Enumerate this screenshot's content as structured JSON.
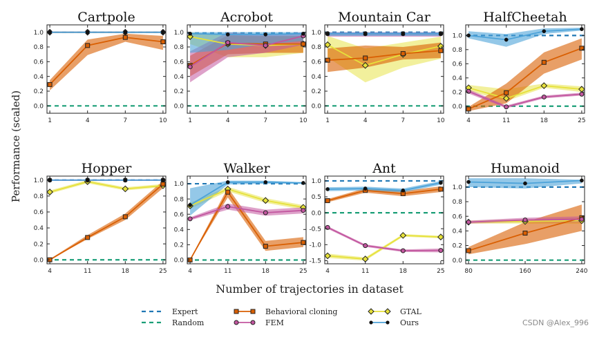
{
  "figure": {
    "ylabel": "Performance (scaled)",
    "xlabel": "Number of trajectories in dataset",
    "watermark": "CSDN @Alex_996"
  },
  "colors": {
    "expert": "#1f77b4",
    "random": "#1a9e77",
    "bc": "#d95f02",
    "fem": "#c2569f",
    "gtal": "#e6e13a",
    "ours": "#4da3d9",
    "marker_edge": "#222222"
  },
  "legend": {
    "entries": [
      {
        "key": "expert",
        "label": "Expert"
      },
      {
        "key": "random",
        "label": "Random"
      },
      {
        "key": "bc",
        "label": "Behavioral cloning"
      },
      {
        "key": "fem",
        "label": "FEM"
      },
      {
        "key": "gtal",
        "label": "GTAL"
      },
      {
        "key": "ours",
        "label": "Ours"
      }
    ]
  },
  "chart_data": [
    {
      "type": "line",
      "title": "Cartpole",
      "x": [
        1,
        4,
        7,
        10
      ],
      "xticks": [
        1,
        4,
        7,
        10
      ],
      "ylim": [
        -0.1,
        1.1
      ],
      "yticks": [
        0.0,
        0.2,
        0.4,
        0.6,
        0.8,
        1.0
      ],
      "expert": 1.0,
      "random": 0.0,
      "series": [
        {
          "key": "bc",
          "values": [
            0.29,
            0.82,
            0.93,
            0.87
          ],
          "lower": [
            0.21,
            0.69,
            0.87,
            0.76
          ],
          "upper": [
            0.35,
            0.9,
            0.98,
            0.95
          ]
        },
        {
          "key": "fem",
          "values": [
            1.0,
            1.0,
            1.0,
            1.0
          ],
          "lower": [
            0.99,
            0.99,
            0.99,
            0.99
          ],
          "upper": [
            1.0,
            1.0,
            1.0,
            1.0
          ]
        },
        {
          "key": "gtal",
          "values": [
            1.0,
            1.0,
            1.0,
            1.0
          ],
          "lower": [
            0.99,
            0.99,
            0.99,
            0.99
          ],
          "upper": [
            1.0,
            1.0,
            1.0,
            1.0
          ]
        },
        {
          "key": "ours",
          "values": [
            1.0,
            1.0,
            1.0,
            1.0
          ],
          "lower": [
            0.99,
            0.99,
            0.99,
            0.99
          ],
          "upper": [
            1.0,
            1.0,
            1.0,
            1.0
          ]
        }
      ]
    },
    {
      "type": "line",
      "title": "Acrobot",
      "x": [
        1,
        4,
        7,
        10
      ],
      "xticks": [
        1,
        4,
        7,
        10
      ],
      "ylim": [
        -0.1,
        1.1
      ],
      "yticks": [
        0.0,
        0.2,
        0.4,
        0.6,
        0.8,
        1.0
      ],
      "expert": 0.99,
      "random": 0.0,
      "series": [
        {
          "key": "bc",
          "values": [
            0.55,
            0.85,
            0.84,
            0.84
          ],
          "lower": [
            0.4,
            0.7,
            0.72,
            0.72
          ],
          "upper": [
            0.68,
            0.96,
            0.95,
            0.95
          ]
        },
        {
          "key": "fem",
          "values": [
            0.53,
            0.86,
            0.82,
            0.95
          ],
          "lower": [
            0.32,
            0.66,
            0.72,
            0.83
          ],
          "upper": [
            0.74,
            1.0,
            0.96,
            1.0
          ]
        },
        {
          "key": "gtal",
          "values": [
            0.94,
            0.84,
            0.82,
            0.84
          ],
          "lower": [
            0.84,
            0.66,
            0.66,
            0.72
          ],
          "upper": [
            1.0,
            0.95,
            0.94,
            0.94
          ]
        },
        {
          "key": "ours",
          "values": [
            0.98,
            0.97,
            0.97,
            0.98
          ],
          "lower": [
            0.72,
            0.76,
            0.84,
            0.88
          ],
          "upper": [
            1.0,
            1.0,
            1.0,
            1.0
          ]
        }
      ]
    },
    {
      "type": "line",
      "title": "Mountain Car",
      "x": [
        1,
        4,
        7,
        10
      ],
      "xticks": [
        1,
        4,
        7,
        10
      ],
      "ylim": [
        -0.1,
        1.1
      ],
      "yticks": [
        0.0,
        0.2,
        0.4,
        0.6,
        0.8,
        1.0
      ],
      "expert": 1.0,
      "random": 0.0,
      "series": [
        {
          "key": "bc",
          "values": [
            0.62,
            0.65,
            0.71,
            0.75
          ],
          "lower": [
            0.46,
            0.52,
            0.63,
            0.65
          ],
          "upper": [
            0.78,
            0.82,
            0.8,
            0.86
          ]
        },
        {
          "key": "fem",
          "values": [
            0.98,
            0.98,
            0.98,
            0.98
          ],
          "lower": [
            0.94,
            0.94,
            0.94,
            0.94
          ],
          "upper": [
            1.0,
            1.0,
            1.0,
            1.0
          ]
        },
        {
          "key": "gtal",
          "values": [
            0.83,
            0.55,
            0.7,
            0.81
          ],
          "lower": [
            0.66,
            0.32,
            0.52,
            0.64
          ],
          "upper": [
            0.95,
            0.78,
            0.86,
            0.94
          ]
        },
        {
          "key": "ours",
          "values": [
            0.98,
            0.98,
            0.98,
            0.98
          ],
          "lower": [
            0.95,
            0.95,
            0.95,
            0.95
          ],
          "upper": [
            1.0,
            1.0,
            1.0,
            1.0
          ]
        }
      ]
    },
    {
      "type": "line",
      "title": "HalfCheetah",
      "x": [
        4,
        11,
        18,
        25
      ],
      "xticks": [
        4,
        11,
        18,
        25
      ],
      "ylim": [
        -0.1,
        1.15
      ],
      "yticks": [
        0.0,
        0.2,
        0.4,
        0.6,
        0.8,
        1.0
      ],
      "expert": 1.0,
      "random": 0.0,
      "series": [
        {
          "key": "bc",
          "values": [
            -0.04,
            0.19,
            0.62,
            0.82
          ],
          "lower": [
            -0.07,
            0.04,
            0.46,
            0.66
          ],
          "upper": [
            -0.01,
            0.32,
            0.76,
            0.96
          ]
        },
        {
          "key": "fem",
          "values": [
            0.21,
            -0.01,
            0.13,
            0.17
          ],
          "lower": [
            0.18,
            -0.03,
            0.11,
            0.15
          ],
          "upper": [
            0.24,
            0.01,
            0.15,
            0.19
          ]
        },
        {
          "key": "gtal",
          "values": [
            0.26,
            0.11,
            0.29,
            0.24
          ],
          "lower": [
            0.22,
            0.07,
            0.26,
            0.2
          ],
          "upper": [
            0.3,
            0.24,
            0.32,
            0.28
          ]
        },
        {
          "key": "ours",
          "values": [
            1.0,
            0.94,
            1.06,
            1.09
          ],
          "lower": [
            0.96,
            0.84,
            1.02,
            1.07
          ],
          "upper": [
            1.06,
            1.02,
            1.1,
            1.11
          ]
        }
      ]
    },
    {
      "type": "line",
      "title": "Hopper",
      "x": [
        4,
        11,
        18,
        25
      ],
      "xticks": [
        4,
        11,
        18,
        25
      ],
      "ylim": [
        -0.05,
        1.05
      ],
      "yticks": [
        0.0,
        0.2,
        0.4,
        0.6,
        0.8,
        1.0
      ],
      "expert": 1.0,
      "random": 0.0,
      "series": [
        {
          "key": "bc",
          "values": [
            0.0,
            0.28,
            0.54,
            0.95
          ],
          "lower": [
            0.0,
            0.26,
            0.5,
            0.9
          ],
          "upper": [
            0.01,
            0.31,
            0.58,
            0.99
          ]
        },
        {
          "key": "fem",
          "values": [
            1.0,
            1.0,
            1.0,
            1.0
          ],
          "lower": [
            0.99,
            0.99,
            0.99,
            0.99
          ],
          "upper": [
            1.0,
            1.0,
            1.0,
            1.0
          ]
        },
        {
          "key": "gtal",
          "values": [
            0.85,
            0.98,
            0.89,
            0.93
          ],
          "lower": [
            0.83,
            0.96,
            0.87,
            0.91
          ],
          "upper": [
            0.87,
            1.0,
            0.91,
            0.95
          ]
        },
        {
          "key": "ours",
          "values": [
            1.0,
            1.0,
            1.0,
            1.0
          ],
          "lower": [
            0.99,
            0.99,
            0.99,
            0.99
          ],
          "upper": [
            1.0,
            1.0,
            1.0,
            1.0
          ]
        }
      ]
    },
    {
      "type": "line",
      "title": "Walker",
      "x": [
        4,
        11,
        18,
        25
      ],
      "xticks": [
        4,
        11,
        18,
        25
      ],
      "ylim": [
        -0.05,
        1.1
      ],
      "yticks": [
        0.0,
        0.2,
        0.4,
        0.6,
        0.8,
        1.0
      ],
      "expert": 1.0,
      "random": 0.0,
      "series": [
        {
          "key": "bc",
          "values": [
            0.0,
            0.89,
            0.18,
            0.23
          ],
          "lower": [
            0.0,
            0.82,
            0.12,
            0.17
          ],
          "upper": [
            0.01,
            0.95,
            0.25,
            0.3
          ]
        },
        {
          "key": "fem",
          "values": [
            0.54,
            0.7,
            0.62,
            0.65
          ],
          "lower": [
            0.52,
            0.66,
            0.58,
            0.61
          ],
          "upper": [
            0.56,
            0.74,
            0.66,
            0.69
          ]
        },
        {
          "key": "gtal",
          "values": [
            0.71,
            0.93,
            0.78,
            0.69
          ],
          "lower": [
            0.67,
            0.9,
            0.75,
            0.66
          ],
          "upper": [
            0.75,
            0.96,
            0.81,
            0.72
          ]
        },
        {
          "key": "ours",
          "values": [
            0.72,
            1.02,
            1.02,
            1.01
          ],
          "lower": [
            0.58,
            0.99,
            1.0,
            1.0
          ],
          "upper": [
            0.94,
            1.04,
            1.04,
            1.02
          ]
        }
      ]
    },
    {
      "type": "line",
      "title": "Ant",
      "x": [
        4,
        11,
        18,
        25
      ],
      "xticks": [
        4,
        11,
        18,
        25
      ],
      "ylim": [
        -1.6,
        1.15
      ],
      "yticks": [
        -1.5,
        -1.0,
        -0.5,
        0.0,
        0.5,
        1.0
      ],
      "expert": 1.0,
      "random": 0.0,
      "series": [
        {
          "key": "bc",
          "values": [
            0.38,
            0.7,
            0.6,
            0.74
          ],
          "lower": [
            0.33,
            0.63,
            0.52,
            0.65
          ],
          "upper": [
            0.43,
            0.77,
            0.68,
            0.83
          ]
        },
        {
          "key": "fem",
          "values": [
            -0.46,
            -1.03,
            -1.19,
            -1.18
          ],
          "lower": [
            -0.5,
            -1.07,
            -1.23,
            -1.24
          ],
          "upper": [
            -0.42,
            -0.99,
            -1.15,
            -1.12
          ]
        },
        {
          "key": "gtal",
          "values": [
            -1.35,
            -1.45,
            -0.71,
            -0.76
          ],
          "lower": [
            -1.42,
            -1.5,
            -0.75,
            -0.8
          ],
          "upper": [
            -1.28,
            -1.4,
            -0.67,
            -0.72
          ]
        },
        {
          "key": "ours",
          "values": [
            0.74,
            0.76,
            0.7,
            0.94
          ],
          "lower": [
            0.68,
            0.7,
            0.64,
            0.88
          ],
          "upper": [
            0.8,
            0.82,
            0.76,
            1.0
          ]
        }
      ]
    },
    {
      "type": "line",
      "title": "Humanoid",
      "x": [
        80,
        160,
        240
      ],
      "xticks": [
        80,
        160,
        240
      ],
      "ylim": [
        -0.05,
        1.15
      ],
      "yticks": [
        0.0,
        0.2,
        0.4,
        0.6,
        0.8,
        1.0
      ],
      "expert": 1.0,
      "random": 0.0,
      "series": [
        {
          "key": "bc",
          "values": [
            0.13,
            0.37,
            0.58
          ],
          "lower": [
            0.08,
            0.22,
            0.4
          ],
          "upper": [
            0.18,
            0.52,
            0.76
          ]
        },
        {
          "key": "fem",
          "values": [
            0.52,
            0.55,
            0.56
          ],
          "lower": [
            0.5,
            0.52,
            0.52
          ],
          "upper": [
            0.54,
            0.58,
            0.6
          ]
        },
        {
          "key": "gtal",
          "values": [
            0.52,
            0.53,
            0.54
          ],
          "lower": [
            0.5,
            0.5,
            0.5
          ],
          "upper": [
            0.54,
            0.56,
            0.58
          ]
        },
        {
          "key": "ours",
          "values": [
            1.07,
            1.05,
            1.09
          ],
          "lower": [
            1.0,
            0.98,
            1.05
          ],
          "upper": [
            1.12,
            1.12,
            1.1
          ]
        }
      ]
    }
  ]
}
